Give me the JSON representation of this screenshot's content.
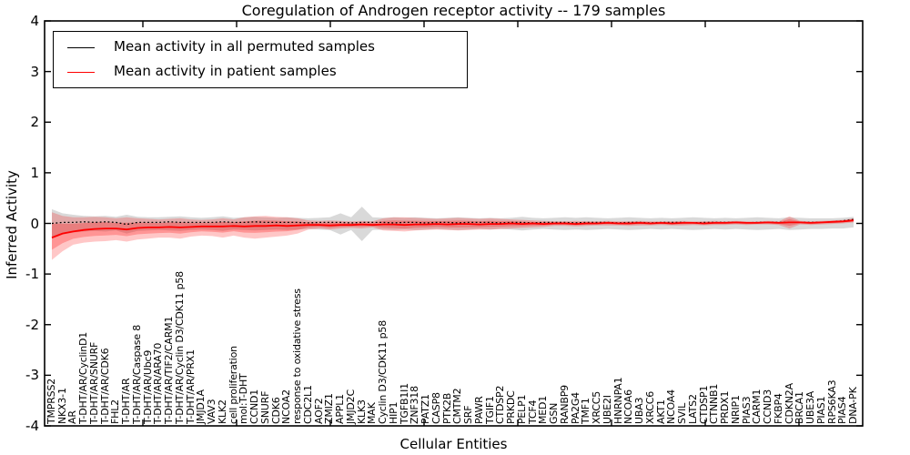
{
  "chart_data": {
    "type": "line",
    "title": "Coregulation of Androgen receptor activity -- 179 samples",
    "xlabel": "Cellular Entities",
    "ylabel": "Inferred Activity",
    "ylim": [
      -4,
      4
    ],
    "yticks": [
      4,
      3,
      2,
      1,
      0,
      -1,
      -2,
      -3,
      -4
    ],
    "grid": false,
    "legend_position": "upper left",
    "colors": {
      "permuted_line": "#000000",
      "patient_line": "#ff0000",
      "permuted_band": "rgba(128,128,128,0.30)",
      "patient_band": "rgba(255,0,0,0.25)"
    },
    "categories": [
      "TMPRSS2",
      "NKX3-1",
      "AR",
      "T-DHT/AR/CyclinD1",
      "T-DHT/AR/SNURF",
      "T-DHT/AR/CDK6",
      "FHL2",
      "T-DHT/AR",
      "T-DHT/AR/Caspase 8",
      "T-DHT/AR/Ubc9",
      "T-DHT/AR/ARA70",
      "T-DHT/AR/TIF2/CARM1",
      "T-DHT/AR/Cyclin D3/CDK11 p58",
      "T-DHT/AR/PRX1",
      "JMJD1A",
      "VAV3",
      "KLK2",
      "cell proliferation",
      "mol:T-DHT",
      "CCND1",
      "SNURF",
      "CDK6",
      "NCOA2",
      "response to oxidative stress",
      "CDC2L1",
      "AOF2",
      "ZMIZ1",
      "APPL1",
      "JMJD2C",
      "KLK3",
      "MAK",
      "Cyclin D3/CDK11 p58",
      "HIP1",
      "TGFB1I1",
      "ZNF318",
      "PATZ1",
      "CASP8",
      "PTK2B",
      "CMTM2",
      "SRF",
      "PAWR",
      "TGIF1",
      "CTDSP2",
      "PRKDC",
      "PELP1",
      "TCF4",
      "MED1",
      "GSN",
      "RANBP9",
      "PA2G4",
      "TMF1",
      "XRCC5",
      "UBE2I",
      "HNRNPA1",
      "NCOA6",
      "UBA3",
      "XRCC6",
      "AKT1",
      "NCOA4",
      "SVIL",
      "LATS2",
      "CTDSP1",
      "CTNNB1",
      "PRDX1",
      "NRIP1",
      "PIAS3",
      "CARM1",
      "CCND3",
      "FKBP4",
      "CDKN2A",
      "BRCA1",
      "UBE3A",
      "PIAS1",
      "RPS6KA3",
      "PIAS4",
      "DNA-PK"
    ],
    "series": [
      {
        "name": "Mean activity in all permuted samples",
        "color": "#000000",
        "values": [
          0.0,
          0.02,
          0.02,
          0.03,
          0.02,
          0.03,
          0.02,
          -0.02,
          0.02,
          0.02,
          0.02,
          0.03,
          0.02,
          0.02,
          0.02,
          0.02,
          0.03,
          0.02,
          0.02,
          0.03,
          0.02,
          0.02,
          0.02,
          0.02,
          0.01,
          0.02,
          0.02,
          0.02,
          0.01,
          0.02,
          0.02,
          0.02,
          0.01,
          0.02,
          0.02,
          0.01,
          0.02,
          0.02,
          0.01,
          0.02,
          0.02,
          0.02,
          0.01,
          0.02,
          0.02,
          0.01,
          0.02,
          0.02,
          0.02,
          0.01,
          0.02,
          0.02,
          0.02,
          0.01,
          0.02,
          0.02,
          0.01,
          0.02,
          0.02,
          0.02,
          0.01,
          0.02,
          0.02,
          0.02,
          0.02,
          0.01,
          0.02,
          0.02,
          0.02,
          0.02,
          0.02,
          0.02,
          0.02,
          0.03,
          0.05,
          0.08
        ],
        "band_upper": [
          0.28,
          0.2,
          0.17,
          0.15,
          0.14,
          0.15,
          0.13,
          0.17,
          0.13,
          0.12,
          0.12,
          0.13,
          0.14,
          0.12,
          0.11,
          0.12,
          0.14,
          0.11,
          0.12,
          0.13,
          0.12,
          0.11,
          0.12,
          0.11,
          0.1,
          0.11,
          0.12,
          0.2,
          0.12,
          0.33,
          0.12,
          0.11,
          0.12,
          0.11,
          0.12,
          0.11,
          0.1,
          0.11,
          0.12,
          0.11,
          0.1,
          0.11,
          0.1,
          0.11,
          0.13,
          0.11,
          0.1,
          0.11,
          0.12,
          0.11,
          0.12,
          0.11,
          0.1,
          0.11,
          0.12,
          0.11,
          0.1,
          0.11,
          0.1,
          0.11,
          0.12,
          0.11,
          0.1,
          0.11,
          0.1,
          0.11,
          0.12,
          0.11,
          0.1,
          0.12,
          0.11,
          0.1,
          0.1,
          0.1,
          0.11,
          0.13
        ],
        "band_lower": [
          -0.3,
          -0.22,
          -0.18,
          -0.16,
          -0.15,
          -0.16,
          -0.14,
          -0.2,
          -0.15,
          -0.14,
          -0.13,
          -0.14,
          -0.15,
          -0.13,
          -0.12,
          -0.13,
          -0.15,
          -0.12,
          -0.13,
          -0.14,
          -0.13,
          -0.12,
          -0.13,
          -0.12,
          -0.11,
          -0.12,
          -0.13,
          -0.22,
          -0.13,
          -0.35,
          -0.13,
          -0.12,
          -0.13,
          -0.12,
          -0.13,
          -0.12,
          -0.11,
          -0.12,
          -0.13,
          -0.12,
          -0.11,
          -0.12,
          -0.11,
          -0.12,
          -0.14,
          -0.12,
          -0.11,
          -0.12,
          -0.13,
          -0.12,
          -0.13,
          -0.12,
          -0.11,
          -0.12,
          -0.13,
          -0.12,
          -0.11,
          -0.12,
          -0.11,
          -0.12,
          -0.13,
          -0.12,
          -0.11,
          -0.12,
          -0.11,
          -0.12,
          -0.13,
          -0.12,
          -0.11,
          -0.13,
          -0.12,
          -0.11,
          -0.11,
          -0.1,
          -0.1,
          -0.08
        ]
      },
      {
        "name": "Mean activity in patient samples",
        "color": "#ff0000",
        "values": [
          -0.28,
          -0.2,
          -0.16,
          -0.13,
          -0.11,
          -0.1,
          -0.1,
          -0.12,
          -0.09,
          -0.08,
          -0.08,
          -0.07,
          -0.08,
          -0.07,
          -0.06,
          -0.06,
          -0.06,
          -0.05,
          -0.06,
          -0.05,
          -0.05,
          -0.04,
          -0.05,
          -0.04,
          -0.03,
          -0.03,
          -0.04,
          -0.03,
          -0.03,
          -0.02,
          -0.03,
          -0.02,
          -0.02,
          -0.03,
          -0.02,
          -0.02,
          -0.01,
          -0.02,
          -0.01,
          -0.01,
          -0.02,
          -0.01,
          -0.01,
          0.0,
          -0.01,
          0.0,
          -0.01,
          0.0,
          0.0,
          -0.01,
          0.0,
          0.0,
          0.01,
          0.0,
          0.0,
          0.01,
          0.0,
          0.01,
          0.0,
          0.01,
          0.01,
          0.0,
          0.01,
          0.01,
          0.02,
          0.01,
          0.01,
          0.02,
          0.01,
          0.02,
          0.02,
          0.01,
          0.02,
          0.03,
          0.04,
          0.06
        ],
        "band_upper": [
          0.22,
          0.15,
          0.12,
          0.12,
          0.13,
          0.12,
          0.1,
          0.12,
          0.1,
          0.09,
          0.08,
          0.09,
          0.1,
          0.08,
          0.07,
          0.08,
          0.1,
          0.08,
          0.12,
          0.14,
          0.15,
          0.13,
          0.12,
          0.1,
          0.06,
          0.05,
          0.06,
          0.05,
          0.04,
          0.05,
          0.04,
          0.1,
          0.12,
          0.12,
          0.11,
          0.1,
          0.09,
          0.1,
          0.11,
          0.1,
          0.09,
          0.1,
          0.09,
          0.08,
          0.07,
          0.06,
          0.05,
          0.04,
          0.04,
          0.05,
          0.04,
          0.04,
          0.05,
          0.04,
          0.04,
          0.05,
          0.04,
          0.04,
          0.04,
          0.05,
          0.04,
          0.04,
          0.05,
          0.04,
          0.05,
          0.04,
          0.04,
          0.05,
          0.04,
          0.14,
          0.05,
          0.04,
          0.05,
          0.06,
          0.07,
          0.1
        ],
        "band_lower": [
          -0.72,
          -0.55,
          -0.42,
          -0.38,
          -0.36,
          -0.35,
          -0.33,
          -0.36,
          -0.32,
          -0.3,
          -0.28,
          -0.28,
          -0.3,
          -0.26,
          -0.24,
          -0.25,
          -0.28,
          -0.24,
          -0.28,
          -0.3,
          -0.28,
          -0.26,
          -0.24,
          -0.2,
          -0.12,
          -0.1,
          -0.12,
          -0.1,
          -0.09,
          -0.1,
          -0.08,
          -0.14,
          -0.15,
          -0.16,
          -0.14,
          -0.13,
          -0.12,
          -0.13,
          -0.14,
          -0.13,
          -0.12,
          -0.12,
          -0.11,
          -0.1,
          -0.09,
          -0.08,
          -0.07,
          -0.05,
          -0.05,
          -0.06,
          -0.05,
          -0.04,
          -0.04,
          -0.04,
          -0.05,
          -0.04,
          -0.04,
          -0.03,
          -0.04,
          -0.04,
          -0.03,
          -0.04,
          -0.03,
          -0.03,
          -0.02,
          -0.03,
          -0.02,
          -0.02,
          -0.03,
          -0.1,
          -0.02,
          -0.03,
          -0.02,
          -0.01,
          0.0,
          0.02
        ]
      }
    ]
  }
}
